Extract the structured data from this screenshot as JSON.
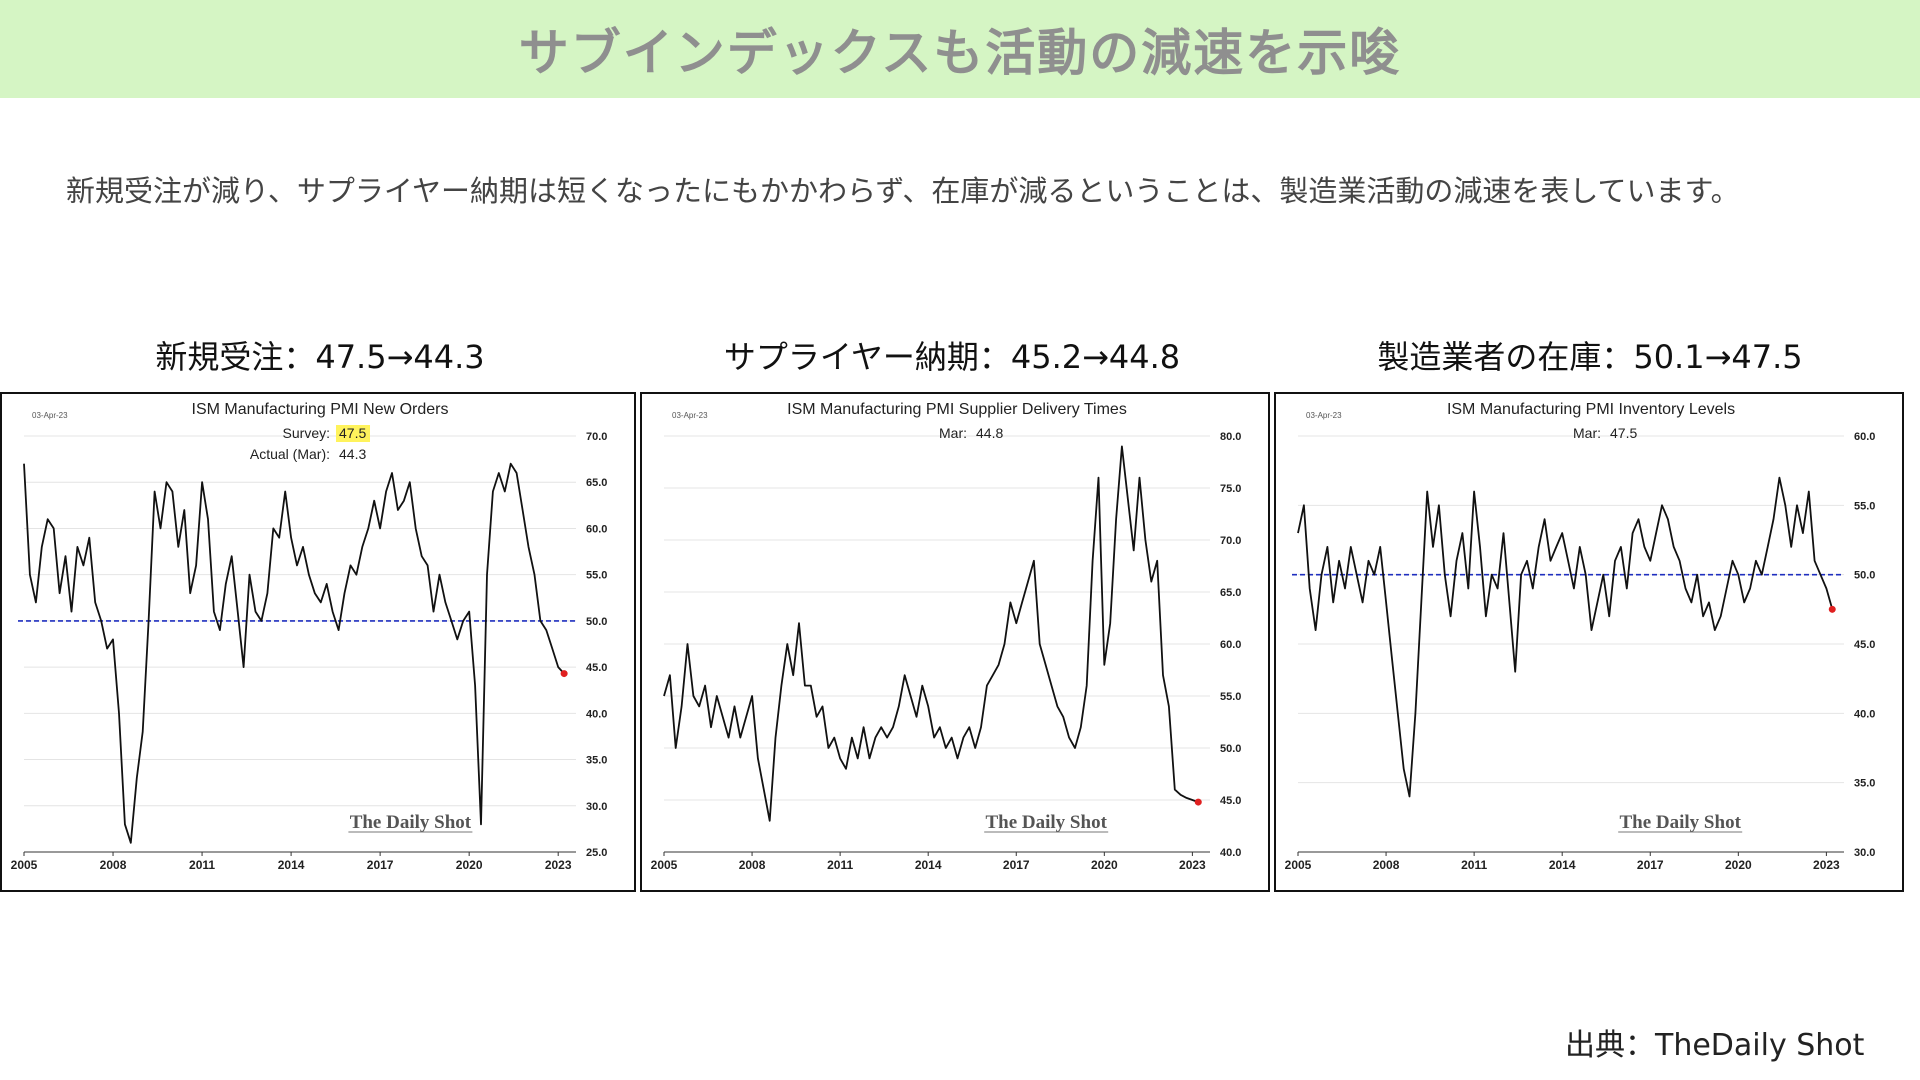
{
  "header": {
    "title": "サブインデックスも活動の減速を示唆"
  },
  "summary": "新規受注が減り、サプライヤー納期は短くなったにもかかわらず、在庫が減るということは、製造業活動の減速を表しています。",
  "panels": [
    {
      "label": "新規受注：47.5→44.3"
    },
    {
      "label": "サプライヤー納期：45.2→44.8"
    },
    {
      "label": "製造業者の在庫：50.1→47.5"
    }
  ],
  "source": "出典：TheDaily Shot",
  "colors": {
    "banner": "#d5f5c4",
    "line": "#111111",
    "reference": "#1f2fbf",
    "last_point": "#e02020",
    "highlight": "#fff35c"
  },
  "chart_data": [
    {
      "type": "line",
      "title": "ISM Manufacturing PMI New Orders",
      "date_note": "03-Apr-23",
      "annotations": [
        {
          "label": "Survey:",
          "value": "47.5",
          "highlight": true
        },
        {
          "label": "Actual (Mar):",
          "value": "44.3",
          "highlight": false
        }
      ],
      "watermark": "The Daily Shot",
      "xlim": [
        2005,
        2023.6
      ],
      "ylim": [
        25,
        70
      ],
      "x_ticks": [
        2005,
        2008,
        2011,
        2014,
        2017,
        2020,
        2023
      ],
      "y_ticks": [
        25.0,
        30.0,
        35.0,
        40.0,
        45.0,
        50.0,
        55.0,
        60.0,
        65.0,
        70.0
      ],
      "y_tick_labels": [
        "25.0",
        "30.0",
        "35.0",
        "40.0",
        "45.0",
        "50.0",
        "55.0",
        "60.0",
        "65.0",
        "70.0"
      ],
      "reference_line": 50,
      "grid": "horizontal",
      "last_point": {
        "x": 2023.2,
        "y": 44.3
      },
      "series": [
        {
          "x": [
            2005.0,
            2005.2,
            2005.4,
            2005.6,
            2005.8,
            2006.0,
            2006.2,
            2006.4,
            2006.6,
            2006.8,
            2007.0,
            2007.2,
            2007.4,
            2007.6,
            2007.8,
            2008.0,
            2008.2,
            2008.4,
            2008.6,
            2008.8,
            2009.0,
            2009.2,
            2009.4,
            2009.6,
            2009.8,
            2010.0,
            2010.2,
            2010.4,
            2010.6,
            2010.8,
            2011.0,
            2011.2,
            2011.4,
            2011.6,
            2011.8,
            2012.0,
            2012.2,
            2012.4,
            2012.6,
            2012.8,
            2013.0,
            2013.2,
            2013.4,
            2013.6,
            2013.8,
            2014.0,
            2014.2,
            2014.4,
            2014.6,
            2014.8,
            2015.0,
            2015.2,
            2015.4,
            2015.6,
            2015.8,
            2016.0,
            2016.2,
            2016.4,
            2016.6,
            2016.8,
            2017.0,
            2017.2,
            2017.4,
            2017.6,
            2017.8,
            2018.0,
            2018.2,
            2018.4,
            2018.6,
            2018.8,
            2019.0,
            2019.2,
            2019.4,
            2019.6,
            2019.8,
            2020.0,
            2020.2,
            2020.4,
            2020.6,
            2020.8,
            2021.0,
            2021.2,
            2021.4,
            2021.6,
            2021.8,
            2022.0,
            2022.2,
            2022.4,
            2022.6,
            2022.8,
            2023.0,
            2023.2
          ],
          "y": [
            67.0,
            55.0,
            52.0,
            58.0,
            61.0,
            60.0,
            53.0,
            57.0,
            51.0,
            58.0,
            56.0,
            59.0,
            52.0,
            50.0,
            47.0,
            48.0,
            40.0,
            28.0,
            26.0,
            33.0,
            38.0,
            50.0,
            64.0,
            60.0,
            65.0,
            64.0,
            58.0,
            62.0,
            53.0,
            56.0,
            65.0,
            61.0,
            51.0,
            49.0,
            54.0,
            57.0,
            51.0,
            45.0,
            55.0,
            51.0,
            50.0,
            53.0,
            60.0,
            59.0,
            64.0,
            59.0,
            56.0,
            58.0,
            55.0,
            53.0,
            52.0,
            54.0,
            51.0,
            49.0,
            53.0,
            56.0,
            55.0,
            58.0,
            60.0,
            63.0,
            60.0,
            64.0,
            66.0,
            62.0,
            63.0,
            65.0,
            60.0,
            57.0,
            56.0,
            51.0,
            55.0,
            52.0,
            50.0,
            48.0,
            50.0,
            51.0,
            43.0,
            28.0,
            55.0,
            64.0,
            66.0,
            64.0,
            67.0,
            66.0,
            62.0,
            58.0,
            55.0,
            50.0,
            49.0,
            47.0,
            45.0,
            44.3
          ]
        }
      ]
    },
    {
      "type": "line",
      "title": "ISM Manufacturing PMI Supplier Delivery Times",
      "date_note": "03-Apr-23",
      "annotations": [
        {
          "label": "Mar:",
          "value": "44.8",
          "highlight": false
        }
      ],
      "watermark": "The Daily Shot",
      "xlim": [
        2005,
        2023.6
      ],
      "ylim": [
        40,
        80
      ],
      "x_ticks": [
        2005,
        2008,
        2011,
        2014,
        2017,
        2020,
        2023
      ],
      "y_ticks": [
        40.0,
        45.0,
        50.0,
        55.0,
        60.0,
        65.0,
        70.0,
        75.0,
        80.0
      ],
      "y_tick_labels": [
        "40.0",
        "45.0",
        "50.0",
        "55.0",
        "60.0",
        "65.0",
        "70.0",
        "75.0",
        "80.0"
      ],
      "reference_line": null,
      "grid": "horizontal",
      "last_point": {
        "x": 2023.2,
        "y": 44.8
      },
      "series": [
        {
          "x": [
            2005.0,
            2005.2,
            2005.4,
            2005.6,
            2005.8,
            2006.0,
            2006.2,
            2006.4,
            2006.6,
            2006.8,
            2007.0,
            2007.2,
            2007.4,
            2007.6,
            2007.8,
            2008.0,
            2008.2,
            2008.4,
            2008.6,
            2008.8,
            2009.0,
            2009.2,
            2009.4,
            2009.6,
            2009.8,
            2010.0,
            2010.2,
            2010.4,
            2010.6,
            2010.8,
            2011.0,
            2011.2,
            2011.4,
            2011.6,
            2011.8,
            2012.0,
            2012.2,
            2012.4,
            2012.6,
            2012.8,
            2013.0,
            2013.2,
            2013.4,
            2013.6,
            2013.8,
            2014.0,
            2014.2,
            2014.4,
            2014.6,
            2014.8,
            2015.0,
            2015.2,
            2015.4,
            2015.6,
            2015.8,
            2016.0,
            2016.2,
            2016.4,
            2016.6,
            2016.8,
            2017.0,
            2017.2,
            2017.4,
            2017.6,
            2017.8,
            2018.0,
            2018.2,
            2018.4,
            2018.6,
            2018.8,
            2019.0,
            2019.2,
            2019.4,
            2019.6,
            2019.8,
            2020.0,
            2020.2,
            2020.4,
            2020.6,
            2020.8,
            2021.0,
            2021.2,
            2021.4,
            2021.6,
            2021.8,
            2022.0,
            2022.2,
            2022.4,
            2022.6,
            2022.8,
            2023.0,
            2023.2
          ],
          "y": [
            55.0,
            57.0,
            50.0,
            54.0,
            60.0,
            55.0,
            54.0,
            56.0,
            52.0,
            55.0,
            53.0,
            51.0,
            54.0,
            51.0,
            53.0,
            55.0,
            49.0,
            46.0,
            43.0,
            51.0,
            56.0,
            60.0,
            57.0,
            62.0,
            56.0,
            56.0,
            53.0,
            54.0,
            50.0,
            51.0,
            49.0,
            48.0,
            51.0,
            49.0,
            52.0,
            49.0,
            51.0,
            52.0,
            51.0,
            52.0,
            54.0,
            57.0,
            55.0,
            53.0,
            56.0,
            54.0,
            51.0,
            52.0,
            50.0,
            51.0,
            49.0,
            51.0,
            52.0,
            50.0,
            52.0,
            56.0,
            57.0,
            58.0,
            60.0,
            64.0,
            62.0,
            64.0,
            66.0,
            68.0,
            60.0,
            58.0,
            56.0,
            54.0,
            53.0,
            51.0,
            50.0,
            52.0,
            56.0,
            68.0,
            76.0,
            58.0,
            62.0,
            72.0,
            79.0,
            74.0,
            69.0,
            76.0,
            70.0,
            66.0,
            68.0,
            57.0,
            54.0,
            46.0,
            45.5,
            45.2,
            45.0,
            44.8
          ]
        }
      ]
    },
    {
      "type": "line",
      "title": "ISM Manufacturing PMI Inventory Levels",
      "date_note": "03-Apr-23",
      "annotations": [
        {
          "label": "Mar:",
          "value": "47.5",
          "highlight": false
        }
      ],
      "watermark": "The Daily Shot",
      "xlim": [
        2005,
        2023.6
      ],
      "ylim": [
        30,
        60
      ],
      "x_ticks": [
        2005,
        2008,
        2011,
        2014,
        2017,
        2020,
        2023
      ],
      "y_ticks": [
        30.0,
        35.0,
        40.0,
        45.0,
        50.0,
        55.0,
        60.0
      ],
      "y_tick_labels": [
        "30.0",
        "35.0",
        "40.0",
        "45.0",
        "50.0",
        "55.0",
        "60.0"
      ],
      "reference_line": 50,
      "grid": "horizontal",
      "last_point": {
        "x": 2023.2,
        "y": 47.5
      },
      "series": [
        {
          "x": [
            2005.0,
            2005.2,
            2005.4,
            2005.6,
            2005.8,
            2006.0,
            2006.2,
            2006.4,
            2006.6,
            2006.8,
            2007.0,
            2007.2,
            2007.4,
            2007.6,
            2007.8,
            2008.0,
            2008.2,
            2008.4,
            2008.6,
            2008.8,
            2009.0,
            2009.2,
            2009.4,
            2009.6,
            2009.8,
            2010.0,
            2010.2,
            2010.4,
            2010.6,
            2010.8,
            2011.0,
            2011.2,
            2011.4,
            2011.6,
            2011.8,
            2012.0,
            2012.2,
            2012.4,
            2012.6,
            2012.8,
            2013.0,
            2013.2,
            2013.4,
            2013.6,
            2013.8,
            2014.0,
            2014.2,
            2014.4,
            2014.6,
            2014.8,
            2015.0,
            2015.2,
            2015.4,
            2015.6,
            2015.8,
            2016.0,
            2016.2,
            2016.4,
            2016.6,
            2016.8,
            2017.0,
            2017.2,
            2017.4,
            2017.6,
            2017.8,
            2018.0,
            2018.2,
            2018.4,
            2018.6,
            2018.8,
            2019.0,
            2019.2,
            2019.4,
            2019.6,
            2019.8,
            2020.0,
            2020.2,
            2020.4,
            2020.6,
            2020.8,
            2021.0,
            2021.2,
            2021.4,
            2021.6,
            2021.8,
            2022.0,
            2022.2,
            2022.4,
            2022.6,
            2022.8,
            2023.0,
            2023.2
          ],
          "y": [
            53.0,
            55.0,
            49.0,
            46.0,
            50.0,
            52.0,
            48.0,
            51.0,
            49.0,
            52.0,
            50.0,
            48.0,
            51.0,
            50.0,
            52.0,
            48.0,
            44.0,
            40.0,
            36.0,
            34.0,
            40.0,
            48.0,
            56.0,
            52.0,
            55.0,
            50.0,
            47.0,
            51.0,
            53.0,
            49.0,
            56.0,
            52.0,
            47.0,
            50.0,
            49.0,
            53.0,
            48.0,
            43.0,
            50.0,
            51.0,
            49.0,
            52.0,
            54.0,
            51.0,
            52.0,
            53.0,
            51.0,
            49.0,
            52.0,
            50.0,
            46.0,
            48.0,
            50.0,
            47.0,
            51.0,
            52.0,
            49.0,
            53.0,
            54.0,
            52.0,
            51.0,
            53.0,
            55.0,
            54.0,
            52.0,
            51.0,
            49.0,
            48.0,
            50.0,
            47.0,
            48.0,
            46.0,
            47.0,
            49.0,
            51.0,
            50.0,
            48.0,
            49.0,
            51.0,
            50.0,
            52.0,
            54.0,
            57.0,
            55.0,
            52.0,
            55.0,
            53.0,
            56.0,
            51.0,
            50.0,
            49.0,
            47.5
          ]
        }
      ]
    }
  ]
}
